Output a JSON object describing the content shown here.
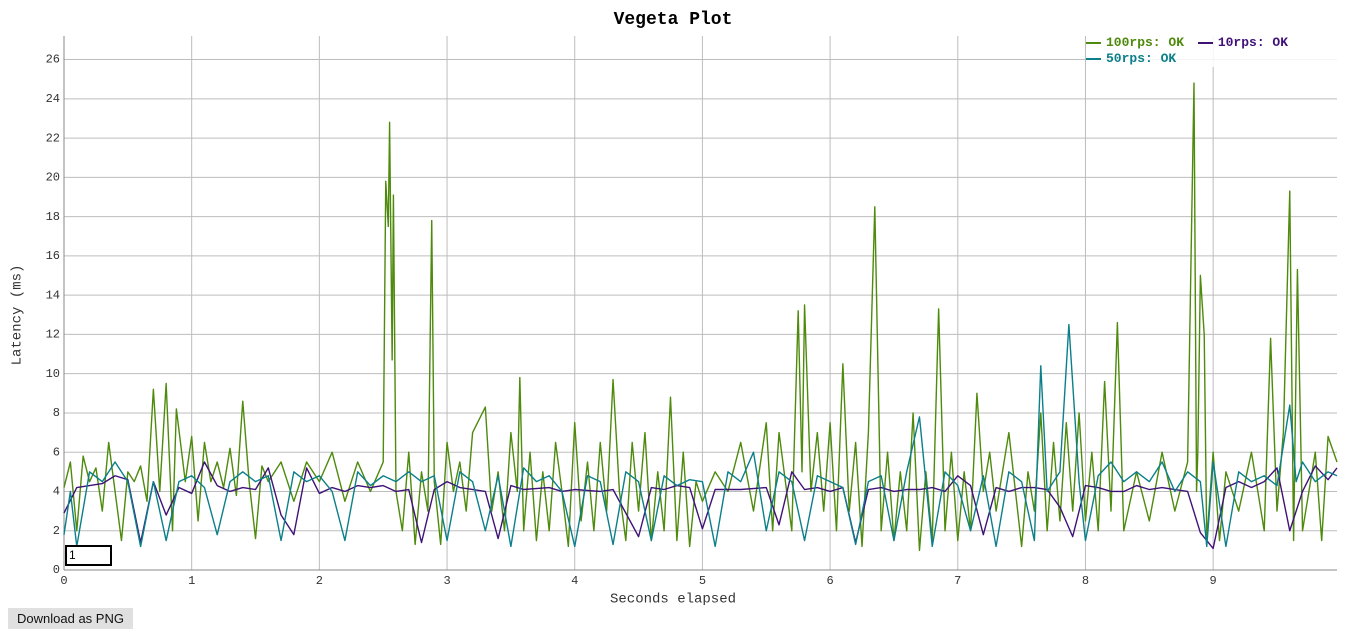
{
  "chart_data": {
    "type": "line",
    "title": "Vegeta Plot",
    "x_label": "Seconds elapsed",
    "y_label": "Latency (ms)",
    "xlim": [
      0,
      9.97
    ],
    "ylim": [
      0,
      27.2
    ],
    "xticks": [
      0,
      1,
      2,
      3,
      4,
      5,
      6,
      7,
      8,
      9
    ],
    "yticks": [
      0,
      2,
      4,
      6,
      8,
      10,
      12,
      14,
      16,
      18,
      20,
      22,
      24,
      26
    ],
    "grid": true,
    "legend": "top-right",
    "series": [
      {
        "name": "100rps: OK",
        "color": "#4e8a0c",
        "x": [
          0,
          0.05,
          0.1,
          0.15,
          0.2,
          0.25,
          0.3,
          0.35,
          0.4,
          0.45,
          0.5,
          0.55,
          0.6,
          0.65,
          0.7,
          0.75,
          0.8,
          0.85,
          0.88,
          0.95,
          1.0,
          1.05,
          1.1,
          1.15,
          1.2,
          1.25,
          1.3,
          1.35,
          1.4,
          1.45,
          1.5,
          1.55,
          1.6,
          1.7,
          1.8,
          1.9,
          2.0,
          2.1,
          2.2,
          2.3,
          2.4,
          2.5,
          2.52,
          2.54,
          2.55,
          2.57,
          2.58,
          2.6,
          2.65,
          2.7,
          2.75,
          2.8,
          2.85,
          2.88,
          2.9,
          2.95,
          3.0,
          3.05,
          3.1,
          3.15,
          3.2,
          3.3,
          3.35,
          3.4,
          3.45,
          3.5,
          3.55,
          3.57,
          3.6,
          3.65,
          3.7,
          3.75,
          3.8,
          3.85,
          3.9,
          3.95,
          4.0,
          4.05,
          4.1,
          4.15,
          4.2,
          4.25,
          4.3,
          4.35,
          4.4,
          4.45,
          4.5,
          4.55,
          4.6,
          4.65,
          4.7,
          4.75,
          4.8,
          4.85,
          4.9,
          4.95,
          5.0,
          5.1,
          5.2,
          5.3,
          5.4,
          5.5,
          5.55,
          5.6,
          5.65,
          5.7,
          5.75,
          5.78,
          5.8,
          5.85,
          5.9,
          5.95,
          6.0,
          6.05,
          6.1,
          6.15,
          6.2,
          6.25,
          6.3,
          6.35,
          6.4,
          6.45,
          6.5,
          6.55,
          6.6,
          6.65,
          6.7,
          6.75,
          6.8,
          6.85,
          6.9,
          6.95,
          7.0,
          7.05,
          7.1,
          7.15,
          7.2,
          7.25,
          7.3,
          7.4,
          7.5,
          7.55,
          7.6,
          7.65,
          7.7,
          7.75,
          7.8,
          7.85,
          7.9,
          7.95,
          8.0,
          8.05,
          8.1,
          8.15,
          8.2,
          8.25,
          8.3,
          8.4,
          8.5,
          8.6,
          8.7,
          8.8,
          8.85,
          8.87,
          8.88,
          8.9,
          8.93,
          8.95,
          9.0,
          9.05,
          9.1,
          9.2,
          9.3,
          9.4,
          9.45,
          9.5,
          9.55,
          9.6,
          9.63,
          9.66,
          9.7,
          9.8,
          9.85,
          9.9,
          9.97
        ],
        "values": [
          4.2,
          5.5,
          2,
          5.8,
          4.5,
          5.2,
          3,
          6.5,
          4,
          1.5,
          5,
          4.5,
          5.3,
          3.5,
          9.2,
          4,
          9.5,
          2,
          8.2,
          4.5,
          6.8,
          2.5,
          6.5,
          4.5,
          5.5,
          4.2,
          6.2,
          3.8,
          8.6,
          4.5,
          1.6,
          5.3,
          4.5,
          5.5,
          3.5,
          5.5,
          4.5,
          6,
          3.5,
          5.5,
          4,
          5.5,
          19.8,
          17.5,
          22.8,
          10.7,
          19.1,
          4,
          2,
          6,
          1.3,
          5,
          3,
          17.8,
          4.5,
          1.3,
          6.5,
          4,
          5.5,
          3,
          7,
          8.3,
          3,
          5,
          2,
          7,
          4,
          9.8,
          2,
          6,
          1.5,
          5,
          2,
          6.5,
          4,
          1.2,
          7.5,
          2.5,
          5.5,
          2,
          6.5,
          3,
          9.7,
          4,
          1.5,
          6.5,
          3,
          7,
          1.5,
          5,
          2,
          8.8,
          1.5,
          6,
          1.2,
          4.5,
          3.5,
          5,
          4,
          6.5,
          3,
          7.5,
          2,
          7,
          4.5,
          2,
          13.2,
          5,
          13.5,
          4,
          7,
          3,
          7.5,
          2,
          10.5,
          3,
          6.5,
          1.2,
          7,
          18.5,
          2,
          6,
          1.5,
          5,
          2,
          8,
          1,
          5,
          1.5,
          13.3,
          2,
          6,
          1.5,
          5,
          2,
          9,
          4,
          6,
          3,
          7,
          1.2,
          5,
          3,
          8,
          2,
          6.5,
          2.5,
          7.5,
          3,
          8,
          2.5,
          6,
          2,
          9.6,
          3,
          12.6,
          2,
          5,
          2.5,
          6,
          3,
          5.5,
          24.8,
          4,
          6,
          15,
          12,
          1.5,
          6,
          1.5,
          5,
          3,
          6,
          2,
          11.8,
          3,
          7,
          19.3,
          1.5,
          15.3,
          2,
          6,
          1.5,
          6.8,
          5.5
        ]
      },
      {
        "name": "10rps: OK",
        "color": "#3f1278",
        "x": [
          0,
          0.1,
          0.3,
          0.4,
          0.5,
          0.6,
          0.7,
          0.8,
          0.9,
          1.0,
          1.1,
          1.2,
          1.3,
          1.4,
          1.5,
          1.6,
          1.7,
          1.8,
          1.9,
          2.0,
          2.1,
          2.2,
          2.3,
          2.4,
          2.5,
          2.6,
          2.7,
          2.8,
          2.9,
          3.0,
          3.1,
          3.3,
          3.4,
          3.5,
          3.6,
          3.8,
          3.9,
          4.0,
          4.2,
          4.3,
          4.5,
          4.6,
          4.7,
          4.8,
          4.9,
          5.0,
          5.1,
          5.3,
          5.5,
          5.6,
          5.7,
          5.8,
          5.9,
          6.0,
          6.1,
          6.2,
          6.3,
          6.4,
          6.5,
          6.6,
          6.7,
          6.8,
          6.9,
          7.0,
          7.1,
          7.2,
          7.3,
          7.4,
          7.5,
          7.6,
          7.7,
          7.8,
          7.9,
          8.0,
          8.1,
          8.2,
          8.3,
          8.4,
          8.5,
          8.6,
          8.7,
          8.8,
          8.9,
          9.0,
          9.1,
          9.2,
          9.3,
          9.4,
          9.5,
          9.6,
          9.7,
          9.8,
          9.9,
          9.97
        ],
        "values": [
          2.9,
          4.2,
          4.4,
          4.8,
          4.6,
          1.4,
          4.5,
          2.8,
          4.2,
          3.9,
          5.5,
          4.3,
          4,
          4.2,
          4.1,
          5.2,
          2.8,
          1.8,
          5.2,
          3.9,
          4.2,
          4,
          4.3,
          4.2,
          4.3,
          4.0,
          4.1,
          1.4,
          4.1,
          4.5,
          4.2,
          4.0,
          1.6,
          4.3,
          4.1,
          4.2,
          4.0,
          4.1,
          4.0,
          4.1,
          1.7,
          4.2,
          4.1,
          4.3,
          4.2,
          2.1,
          4.1,
          4.1,
          4.2,
          2.3,
          5.0,
          4.1,
          4.2,
          4.0,
          4.2,
          1.4,
          4.1,
          4.2,
          4.0,
          4.1,
          4.1,
          4.2,
          4.0,
          4.8,
          4.3,
          1.8,
          4.2,
          4.0,
          4.2,
          4.2,
          4.1,
          3.2,
          1.7,
          4.3,
          4.2,
          4.0,
          4.0,
          4.3,
          4.1,
          4.2,
          4.1,
          4.0,
          1.9,
          1.1,
          4.2,
          4.5,
          4.2,
          4.5,
          5.2,
          2.0,
          4.0,
          5.3,
          4.6,
          5.2
        ]
      },
      {
        "name": "50rps: OK",
        "color": "#0b7f8a",
        "x": [
          0,
          0.05,
          0.1,
          0.2,
          0.3,
          0.4,
          0.5,
          0.6,
          0.7,
          0.8,
          0.9,
          1.0,
          1.1,
          1.2,
          1.3,
          1.4,
          1.5,
          1.6,
          1.7,
          1.8,
          1.9,
          2.0,
          2.1,
          2.2,
          2.3,
          2.4,
          2.5,
          2.6,
          2.7,
          2.8,
          2.9,
          3.0,
          3.1,
          3.2,
          3.3,
          3.4,
          3.5,
          3.6,
          3.7,
          3.8,
          3.9,
          4.0,
          4.1,
          4.2,
          4.3,
          4.4,
          4.5,
          4.6,
          4.7,
          4.8,
          4.9,
          5.0,
          5.1,
          5.2,
          5.3,
          5.4,
          5.5,
          5.6,
          5.7,
          5.8,
          5.9,
          6.0,
          6.1,
          6.2,
          6.3,
          6.4,
          6.5,
          6.6,
          6.7,
          6.8,
          6.9,
          7.0,
          7.1,
          7.2,
          7.3,
          7.4,
          7.5,
          7.6,
          7.65,
          7.7,
          7.8,
          7.87,
          7.95,
          8.0,
          8.1,
          8.2,
          8.3,
          8.4,
          8.5,
          8.6,
          8.7,
          8.8,
          8.9,
          8.95,
          9.0,
          9.1,
          9.2,
          9.3,
          9.4,
          9.5,
          9.6,
          9.65,
          9.7,
          9.8,
          9.9,
          9.97
        ],
        "values": [
          1.8,
          4,
          1.2,
          5,
          4.5,
          5.5,
          4.5,
          1.2,
          4.5,
          1.5,
          4.5,
          4.8,
          4.2,
          1.8,
          4.5,
          5,
          4.5,
          4.8,
          1.5,
          5,
          4.5,
          4.8,
          4,
          1.5,
          5,
          4.3,
          4.8,
          4.5,
          5,
          4.5,
          4.8,
          1.5,
          5,
          4.5,
          2,
          4.8,
          1.2,
          5.2,
          4.5,
          4.8,
          4,
          1.2,
          4.8,
          4.5,
          1.3,
          5,
          4.5,
          1.5,
          4.8,
          4.3,
          4.6,
          4.5,
          1.2,
          5,
          4.5,
          6,
          2,
          5,
          4.5,
          1.5,
          4.8,
          4.5,
          4.2,
          1.3,
          4.5,
          4.8,
          1.5,
          5,
          7.8,
          1.2,
          5,
          4.3,
          2,
          4.8,
          1.2,
          5,
          4.5,
          1.5,
          10.4,
          4,
          5,
          12.5,
          4.5,
          1.5,
          4.8,
          5.5,
          4.5,
          5,
          4.5,
          5.5,
          4,
          5,
          4.5,
          1.2,
          5.5,
          1.2,
          5,
          4.5,
          4.8,
          4.3,
          8.4,
          4.5,
          5.5,
          4.5,
          5,
          4.8
        ]
      }
    ]
  },
  "zoom_input": "1",
  "button": "Download as PNG"
}
